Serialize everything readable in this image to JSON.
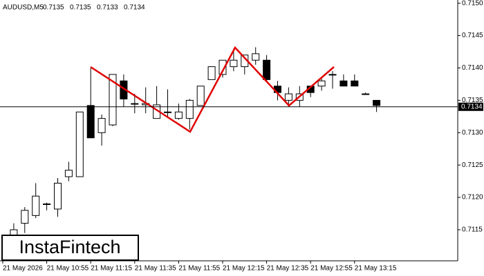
{
  "chart_data": {
    "type": "candlestick",
    "title": "AUDUSD,M5",
    "ohlc_values": [
      0.7135,
      0.7135,
      0.7133,
      0.7134
    ],
    "current_price": 0.7134,
    "watermark": "InstaFintech",
    "categories": [
      "21 May 2026",
      null,
      null,
      null,
      "21 May 10:55",
      null,
      null,
      null,
      "21 May 11:15",
      null,
      null,
      null,
      "21 May 11:35",
      null,
      null,
      null,
      "21 May 11:55",
      null,
      null,
      null,
      "21 May 12:15",
      null,
      null,
      null,
      "21 May 12:35",
      null,
      null,
      null,
      "21 May 12:55",
      null,
      null,
      null,
      "21 May 13:15",
      null,
      null
    ],
    "open": [
      null,
      0.7114,
      0.7116,
      0.71172,
      0.7119,
      0.71182,
      0.71232,
      0.71232,
      0.71342,
      0.713,
      0.71312,
      0.7138,
      0.71345,
      0.71343,
      0.71322,
      0.71332,
      0.71322,
      0.71322,
      0.71342,
      0.71382,
      0.7139,
      0.71402,
      0.71402,
      0.71412,
      0.71412,
      0.71372,
      0.7135,
      0.7135,
      0.71372,
      0.71372,
      0.7139,
      0.7138,
      0.7138,
      0.7136,
      0.7135
    ],
    "high": [
      null,
      0.7116,
      0.71185,
      0.71222,
      0.71192,
      0.7123,
      0.71255,
      0.71332,
      0.714,
      0.71328,
      0.7139,
      0.7139,
      0.7136,
      0.7137,
      0.71372,
      0.71367,
      0.71345,
      0.71352,
      0.71372,
      0.71402,
      0.71412,
      0.7143,
      0.7142,
      0.71432,
      0.7142,
      0.7138,
      0.7137,
      0.71372,
      0.71372,
      0.71385,
      0.71395,
      0.7139,
      0.7139,
      0.71362,
      0.7135
    ],
    "low": [
      null,
      0.7113,
      0.71145,
      0.71168,
      0.7118,
      0.7117,
      0.71225,
      0.71232,
      0.71292,
      0.7128,
      0.7131,
      0.7134,
      0.7133,
      0.7133,
      0.71322,
      0.71325,
      0.7132,
      0.71305,
      0.71342,
      0.71382,
      0.71385,
      0.71395,
      0.7139,
      0.71405,
      0.7138,
      0.7135,
      0.7134,
      0.7134,
      0.71355,
      0.71365,
      0.71368,
      0.71372,
      0.71372,
      0.7136,
      0.71332
    ],
    "close": [
      null,
      0.7115,
      0.7118,
      0.71202,
      0.7119,
      0.71222,
      0.71242,
      0.71332,
      0.71292,
      0.71322,
      0.7139,
      0.71352,
      0.71345,
      0.71345,
      0.71343,
      0.71332,
      0.71332,
      0.7135,
      0.71372,
      0.71402,
      0.71412,
      0.71412,
      0.7142,
      0.71422,
      0.71382,
      0.71362,
      0.7136,
      0.7136,
      0.71362,
      0.7138,
      0.7139,
      0.71372,
      0.71372,
      0.7136,
      0.71342
    ],
    "up_color": "#ffffff",
    "down_color": "#000000",
    "ylim": [
      0.71102,
      0.71505
    ],
    "yticks": [
      0.7115,
      {
        "value": 0.712,
        "label": "0.7120"
      },
      0.7125,
      {
        "value": 0.713,
        "label": "0.7130"
      },
      0.7135,
      {
        "value": 0.714,
        "label": "0.7140"
      },
      0.7145,
      {
        "value": 0.715,
        "label": "0.7150"
      }
    ]
  }
}
